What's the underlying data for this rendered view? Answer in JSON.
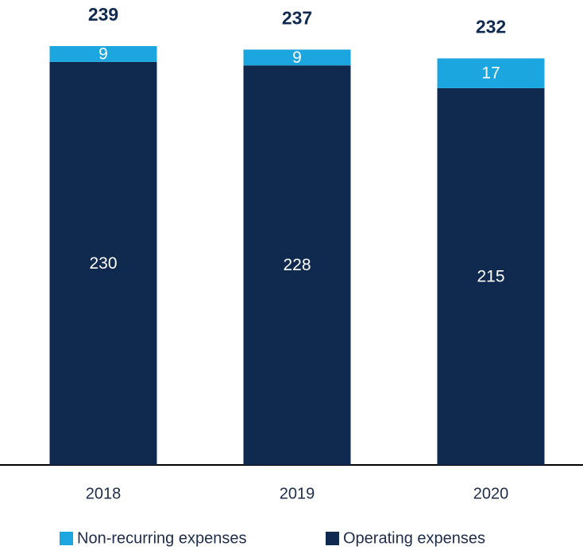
{
  "chart_data": {
    "type": "stacked-bar",
    "categories": [
      "2018",
      "2019",
      "2020"
    ],
    "series": [
      {
        "name": "Operating expenses",
        "color": "#0f2a4e",
        "values": [
          230,
          228,
          215
        ]
      },
      {
        "name": "Non-recurring expenses",
        "color": "#1ba6df",
        "values": [
          9,
          9,
          17
        ]
      }
    ],
    "totals": [
      239,
      237,
      232
    ],
    "legend": "bottom"
  }
}
